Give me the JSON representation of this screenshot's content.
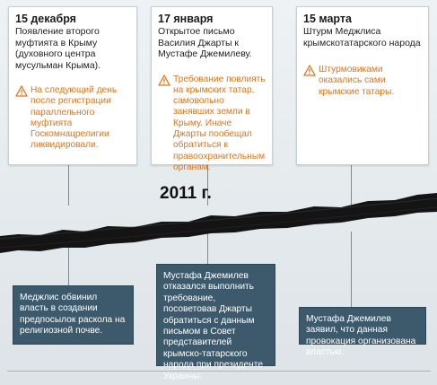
{
  "year_label": "2011 г.",
  "events": [
    {
      "date": "15 декабря",
      "description": "Появление второго муфтията в Крыму (духовного центра мусульман Крыма).",
      "note": "На следующий день после регистрации параллельного муфтията Госкомнацрелигии ликвидировали.",
      "response": "Меджлис обвинил власть в создании предпосылок раскола на религиозной почве."
    },
    {
      "date": "17 января",
      "description": "Открытое письмо Василия Джарты к Мустафе Джемилеву.",
      "note": "Требование повлиять на крымских татар, самовольно занявших земли в Крыму. Иначе Джарты пообещал обратиться к правоохранительным органам.",
      "response": "Мустафа Джемилев отказался выполнить требование, посоветовав Джарты обратиться с данным письмом в Совет представителей крымско-татарского народа при президенте Украины."
    },
    {
      "date": "15 марта",
      "description": "Штурм Меджлиса крымскотатарского народа",
      "note": "Штурмовиками оказались сами крымские татары.",
      "response": "Мустафа Джемилев заявил, что данная провокация организована властью."
    }
  ],
  "colors": {
    "warning": "#e0761a",
    "response_box": "#3c5a6c",
    "band": "#141414"
  },
  "icons": {
    "note_icon": "warning-triangle-icon"
  }
}
